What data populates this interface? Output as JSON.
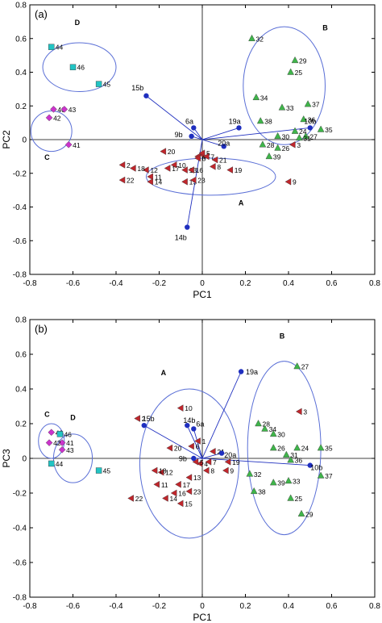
{
  "colors": {
    "A": "#c0262c",
    "B": "#3fb54a",
    "C": "#cc33cc",
    "D": "#22c4c4",
    "biplot": "#1f2fbf",
    "ellipse": "#5a6fd6",
    "axis": "#000000"
  },
  "chart_data": [
    {
      "type": "scatter",
      "panel_label": "(a)",
      "xlabel": "PC1",
      "ylabel": "PC2",
      "xlim": [
        -0.8,
        0.8
      ],
      "ylim": [
        -0.8,
        0.8
      ],
      "xticks": [
        "-0.8",
        "-0.6",
        "-0.4",
        "-0.2",
        "0",
        "0.2",
        "0.4",
        "0.6",
        "0.8"
      ],
      "yticks": [
        "0.8",
        "0.6",
        "0.4",
        "0.2",
        "0",
        "-0.2",
        "-0.4",
        "-0.6",
        "-0.8"
      ],
      "groups": [
        {
          "label": "A",
          "marker": "triangle-left",
          "color_key": "A",
          "label_pos": [
            0.18,
            -0.39
          ],
          "ellipse": {
            "cx": 0.04,
            "cy": -0.22,
            "rx": 0.3,
            "ry": 0.11
          },
          "points": [
            {
              "l": "1",
              "x": 0.0,
              "y": -0.09
            },
            {
              "l": "2",
              "x": -0.37,
              "y": -0.15
            },
            {
              "l": "3",
              "x": 0.42,
              "y": -0.03
            },
            {
              "l": "4",
              "x": -0.02,
              "y": -0.1
            },
            {
              "l": "5",
              "x": 0.0,
              "y": -0.08
            },
            {
              "l": "6",
              "x": -0.02,
              "y": -0.11
            },
            {
              "l": "7",
              "x": 0.02,
              "y": -0.1
            },
            {
              "l": "8",
              "x": 0.05,
              "y": -0.16
            },
            {
              "l": "9",
              "x": 0.4,
              "y": -0.25
            },
            {
              "l": "10",
              "x": -0.13,
              "y": -0.15
            },
            {
              "l": "11",
              "x": -0.24,
              "y": -0.22
            },
            {
              "l": "12",
              "x": -0.26,
              "y": -0.18
            },
            {
              "l": "13",
              "x": -0.08,
              "y": -0.18
            },
            {
              "l": "14",
              "x": -0.24,
              "y": -0.25
            },
            {
              "l": "15",
              "x": -0.08,
              "y": -0.25
            },
            {
              "l": "16",
              "x": -0.05,
              "y": -0.18
            },
            {
              "l": "17",
              "x": -0.16,
              "y": -0.17
            },
            {
              "l": "18",
              "x": -0.32,
              "y": -0.17
            },
            {
              "l": "19",
              "x": 0.13,
              "y": -0.18
            },
            {
              "l": "20",
              "x": -0.18,
              "y": -0.07
            },
            {
              "l": "21",
              "x": 0.06,
              "y": -0.12
            },
            {
              "l": "22",
              "x": -0.37,
              "y": -0.24
            },
            {
              "l": "23",
              "x": -0.04,
              "y": -0.24
            }
          ]
        },
        {
          "label": "B",
          "marker": "triangle-up",
          "color_key": "B",
          "label_pos": [
            0.57,
            0.65
          ],
          "ellipse": {
            "cx": 0.38,
            "cy": 0.32,
            "rx": 0.19,
            "ry": 0.35
          },
          "points": [
            {
              "l": "24",
              "x": 0.43,
              "y": 0.05
            },
            {
              "l": "25",
              "x": 0.41,
              "y": 0.4
            },
            {
              "l": "26",
              "x": 0.35,
              "y": -0.05
            },
            {
              "l": "27",
              "x": 0.48,
              "y": 0.02
            },
            {
              "l": "28",
              "x": 0.28,
              "y": -0.03
            },
            {
              "l": "29",
              "x": 0.43,
              "y": 0.47
            },
            {
              "l": "30",
              "x": 0.35,
              "y": 0.02
            },
            {
              "l": "31",
              "x": 0.45,
              "y": 0.01
            },
            {
              "l": "32",
              "x": 0.23,
              "y": 0.6
            },
            {
              "l": "33",
              "x": 0.37,
              "y": 0.19
            },
            {
              "l": "34",
              "x": 0.25,
              "y": 0.25
            },
            {
              "l": "35",
              "x": 0.55,
              "y": 0.06
            },
            {
              "l": "36",
              "x": 0.47,
              "y": 0.12
            },
            {
              "l": "37",
              "x": 0.49,
              "y": 0.21
            },
            {
              "l": "38",
              "x": 0.27,
              "y": 0.11
            },
            {
              "l": "39",
              "x": 0.31,
              "y": -0.1
            }
          ]
        },
        {
          "label": "C",
          "marker": "diamond",
          "color_key": "C",
          "label_pos": [
            -0.72,
            -0.12
          ],
          "ellipse": {
            "cx": -0.7,
            "cy": 0.05,
            "rx": 0.095,
            "ry": 0.12
          },
          "points": [
            {
              "l": "40",
              "x": -0.69,
              "y": 0.18
            },
            {
              "l": "41",
              "x": -0.62,
              "y": -0.03
            },
            {
              "l": "42",
              "x": -0.71,
              "y": 0.13
            },
            {
              "l": "43",
              "x": -0.64,
              "y": 0.18
            }
          ]
        },
        {
          "label": "D",
          "marker": "square",
          "color_key": "D",
          "label_pos": [
            -0.58,
            0.68
          ],
          "ellipse": {
            "cx": -0.57,
            "cy": 0.43,
            "rx": 0.17,
            "ry": 0.145
          },
          "points": [
            {
              "l": "44",
              "x": -0.7,
              "y": 0.55
            },
            {
              "l": "45",
              "x": -0.48,
              "y": 0.33
            },
            {
              "l": "46",
              "x": -0.6,
              "y": 0.43
            }
          ]
        }
      ],
      "biplot_vectors": [
        {
          "l": "6a",
          "x": -0.04,
          "y": 0.07,
          "lx": -0.06,
          "ly": 0.11
        },
        {
          "l": "9b",
          "x": -0.05,
          "y": 0.02,
          "lx": -0.11,
          "ly": 0.03
        },
        {
          "l": "10b",
          "x": 0.5,
          "y": 0.07,
          "lx": 0.5,
          "ly": 0.11
        },
        {
          "l": "14b",
          "x": -0.07,
          "y": -0.52,
          "lx": -0.1,
          "ly": -0.58
        },
        {
          "l": "15b",
          "x": -0.26,
          "y": 0.26,
          "lx": -0.3,
          "ly": 0.31
        },
        {
          "l": "19a",
          "x": 0.17,
          "y": 0.07,
          "lx": 0.15,
          "ly": 0.11
        },
        {
          "l": "20a",
          "x": 0.1,
          "y": -0.04,
          "lx": 0.1,
          "ly": -0.02
        }
      ]
    },
    {
      "type": "scatter",
      "panel_label": "(b)",
      "xlabel": "PC1",
      "ylabel": "PC3",
      "xlim": [
        -0.8,
        0.8
      ],
      "ylim": [
        -0.8,
        0.8
      ],
      "xticks": [
        "-0.8",
        "-0.6",
        "-0.4",
        "-0.2",
        "0",
        "0.2",
        "0.4",
        "0.6",
        "0.8"
      ],
      "yticks": [
        "0.8",
        "0.6",
        "0.4",
        "0.2",
        "0",
        "-0.2",
        "-0.4",
        "-0.6",
        "-0.8"
      ],
      "groups": [
        {
          "label": "A",
          "marker": "triangle-left",
          "color_key": "A",
          "label_pos": [
            -0.18,
            0.48
          ],
          "ellipse": {
            "cx": -0.06,
            "cy": -0.03,
            "rx": 0.23,
            "ry": 0.43
          },
          "points": [
            {
              "l": "1",
              "x": -0.02,
              "y": 0.1
            },
            {
              "l": "2",
              "x": -0.3,
              "y": 0.23
            },
            {
              "l": "3",
              "x": 0.45,
              "y": 0.27
            },
            {
              "l": "4",
              "x": -0.01,
              "y": -0.03
            },
            {
              "l": "5",
              "x": -0.03,
              "y": -0.02
            },
            {
              "l": "6",
              "x": -0.05,
              "y": 0.07
            },
            {
              "l": "7",
              "x": 0.03,
              "y": -0.02
            },
            {
              "l": "8",
              "x": 0.02,
              "y": -0.07
            },
            {
              "l": "9",
              "x": 0.11,
              "y": -0.07
            },
            {
              "l": "10",
              "x": -0.1,
              "y": 0.29
            },
            {
              "l": "11",
              "x": -0.21,
              "y": -0.15
            },
            {
              "l": "12",
              "x": -0.19,
              "y": -0.08
            },
            {
              "l": "13",
              "x": -0.06,
              "y": -0.11
            },
            {
              "l": "14",
              "x": -0.17,
              "y": -0.23
            },
            {
              "l": "15",
              "x": -0.1,
              "y": -0.26
            },
            {
              "l": "16",
              "x": -0.13,
              "y": -0.2
            },
            {
              "l": "17",
              "x": -0.11,
              "y": -0.15
            },
            {
              "l": "18",
              "x": -0.22,
              "y": -0.07
            },
            {
              "l": "19",
              "x": 0.12,
              "y": -0.02
            },
            {
              "l": "20",
              "x": -0.15,
              "y": 0.06
            },
            {
              "l": "21",
              "x": 0.05,
              "y": 0.04
            },
            {
              "l": "22",
              "x": -0.33,
              "y": -0.23
            },
            {
              "l": "23",
              "x": -0.06,
              "y": -0.19
            }
          ]
        },
        {
          "label": "B",
          "marker": "triangle-up",
          "color_key": "B",
          "label_pos": [
            0.37,
            0.69
          ],
          "ellipse": {
            "cx": 0.38,
            "cy": 0.06,
            "rx": 0.17,
            "ry": 0.5
          },
          "points": [
            {
              "l": "24",
              "x": 0.44,
              "y": 0.06
            },
            {
              "l": "25",
              "x": 0.41,
              "y": -0.23
            },
            {
              "l": "26",
              "x": 0.33,
              "y": 0.06
            },
            {
              "l": "27",
              "x": 0.44,
              "y": 0.53
            },
            {
              "l": "28",
              "x": 0.26,
              "y": 0.2
            },
            {
              "l": "29",
              "x": 0.46,
              "y": -0.32
            },
            {
              "l": "30",
              "x": 0.33,
              "y": 0.14
            },
            {
              "l": "31",
              "x": 0.39,
              "y": 0.02
            },
            {
              "l": "32",
              "x": 0.22,
              "y": -0.09
            },
            {
              "l": "33",
              "x": 0.4,
              "y": -0.13
            },
            {
              "l": "34",
              "x": 0.29,
              "y": 0.17
            },
            {
              "l": "35",
              "x": 0.55,
              "y": 0.06
            },
            {
              "l": "36",
              "x": 0.41,
              "y": -0.01
            },
            {
              "l": "37",
              "x": 0.55,
              "y": -0.1
            },
            {
              "l": "38",
              "x": 0.24,
              "y": -0.19
            },
            {
              "l": "39",
              "x": 0.33,
              "y": -0.14
            }
          ]
        },
        {
          "label": "C",
          "marker": "diamond",
          "color_key": "C",
          "label_pos": [
            -0.72,
            0.24
          ],
          "ellipse": {
            "cx": -0.7,
            "cy": 0.1,
            "rx": 0.06,
            "ry": 0.1
          },
          "points": [
            {
              "l": "40",
              "x": -0.7,
              "y": 0.15
            },
            {
              "l": "41",
              "x": -0.65,
              "y": 0.09
            },
            {
              "l": "42",
              "x": -0.71,
              "y": 0.09
            },
            {
              "l": "43",
              "x": -0.65,
              "y": 0.05
            }
          ]
        },
        {
          "label": "D",
          "marker": "square",
          "color_key": "D",
          "label_pos": [
            -0.6,
            0.22
          ],
          "ellipse": {
            "cx": -0.6,
            "cy": 0.0,
            "rx": 0.09,
            "ry": 0.14
          },
          "points": [
            {
              "l": "44",
              "x": -0.7,
              "y": -0.03
            },
            {
              "l": "45",
              "x": -0.48,
              "y": -0.07
            },
            {
              "l": "46",
              "x": -0.66,
              "y": 0.14
            }
          ]
        }
      ],
      "biplot_vectors": [
        {
          "l": "6a",
          "x": -0.04,
          "y": 0.17,
          "lx": -0.01,
          "ly": 0.2
        },
        {
          "l": "9b",
          "x": -0.04,
          "y": 0.0,
          "lx": -0.09,
          "ly": 0.0
        },
        {
          "l": "10b",
          "x": 0.5,
          "y": -0.04,
          "lx": 0.53,
          "ly": -0.05
        },
        {
          "l": "14b",
          "x": -0.07,
          "y": 0.19,
          "lx": -0.06,
          "ly": 0.22
        },
        {
          "l": "15b",
          "x": -0.27,
          "y": 0.19,
          "lx": -0.25,
          "ly": 0.23
        },
        {
          "l": "19a",
          "x": 0.18,
          "y": 0.5,
          "lx": 0.23,
          "ly": 0.5
        },
        {
          "l": "20a",
          "x": 0.09,
          "y": 0.03,
          "lx": 0.13,
          "ly": 0.02
        }
      ]
    }
  ]
}
